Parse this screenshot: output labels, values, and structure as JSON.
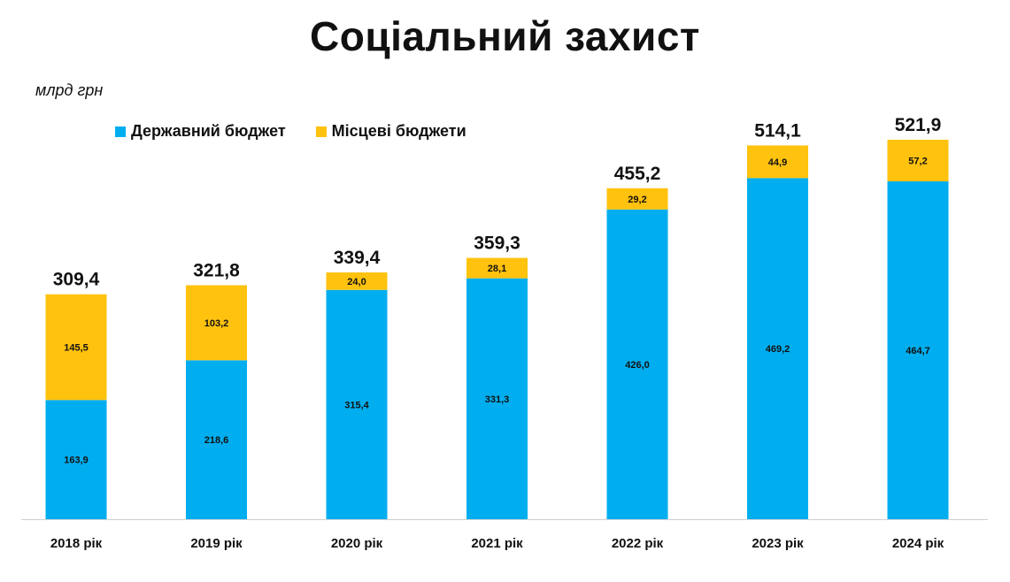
{
  "title": "Соціальний захист",
  "unit_label": "млрд грн",
  "colors": {
    "state": "#00AEEF",
    "local": "#FFC20E",
    "axis": "#d0d0d0",
    "text": "#111111"
  },
  "chart_data": {
    "type": "bar",
    "stacked": true,
    "categories": [
      "2018 рік",
      "2019 рік",
      "2020 рік",
      "2021 рік",
      "2022 рік",
      "2023 рік",
      "2024 рік"
    ],
    "series": [
      {
        "name": "Державний бюджет",
        "values": [
          163.9,
          218.6,
          315.4,
          331.3,
          426.0,
          469.2,
          464.7
        ],
        "value_labels": [
          "163,9",
          "218,6",
          "315,4",
          "331,3",
          "426,0",
          "469,2",
          "464,7"
        ]
      },
      {
        "name": "Місцеві бюджети",
        "values": [
          145.5,
          103.2,
          24.0,
          28.1,
          29.2,
          44.9,
          57.2
        ],
        "value_labels": [
          "145,5",
          "103,2",
          "24,0",
          "28,1",
          "29,2",
          "44,9",
          "57,2"
        ]
      }
    ],
    "totals": [
      309.4,
      321.8,
      339.4,
      359.3,
      455.2,
      514.1,
      521.9
    ],
    "total_labels": [
      "309,4",
      "321,8",
      "339,4",
      "359,3",
      "455,2",
      "514,1",
      "521,9"
    ],
    "ylim": [
      0,
      521.9
    ],
    "grid": false,
    "legend_position": "top-left"
  }
}
